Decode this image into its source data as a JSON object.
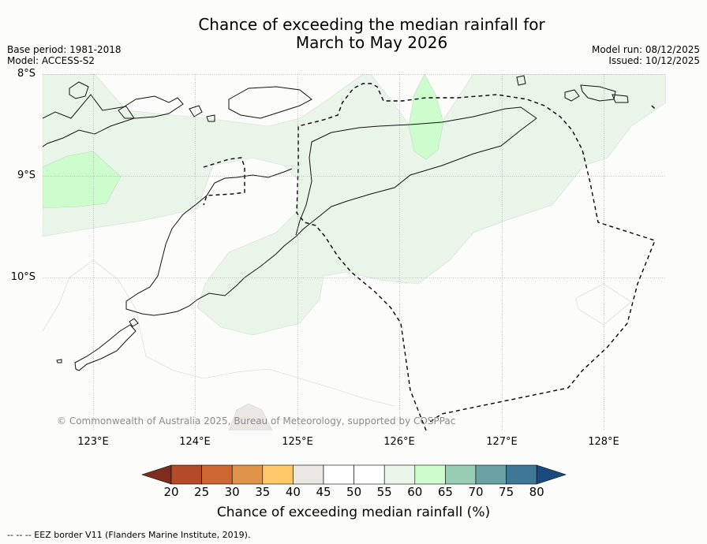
{
  "title": "Chance of exceeding the median rainfall for\nMarch to May 2026",
  "meta_left": {
    "base_period": "Base period: 1981-2018",
    "model": "Model: ACCESS-S2"
  },
  "meta_right": {
    "model_run": "Model run: 08/12/2025",
    "issued": "Issued: 10/12/2025"
  },
  "latitude_labels": [
    "8°S",
    "9°S",
    "10°S"
  ],
  "longitude_labels": [
    "123°E",
    "124°E",
    "125°E",
    "126°E",
    "127°E",
    "128°E"
  ],
  "copyright": "© Commonwealth of Australia 2025, Bureau of Meteorology, supported by COSPPac",
  "colorbar": {
    "title": "Chance of exceeding median rainfall (%)",
    "ticks": [
      "20",
      "25",
      "30",
      "35",
      "40",
      "45",
      "50",
      "55",
      "60",
      "65",
      "70",
      "75",
      "80"
    ],
    "colors": [
      "#7e2d1c",
      "#b44a28",
      "#cd6832",
      "#e0944a",
      "#fdc868",
      "#ebe7e3",
      "#ffffff",
      "#ffffff",
      "#e9f5e8",
      "#cdfdcc",
      "#98cdb4",
      "#6aa1a4",
      "#3f7896",
      "#1a4a7e"
    ]
  },
  "footer": "-- -- -- EEZ border V11 (Flanders Marine Institute, 2019)."
}
